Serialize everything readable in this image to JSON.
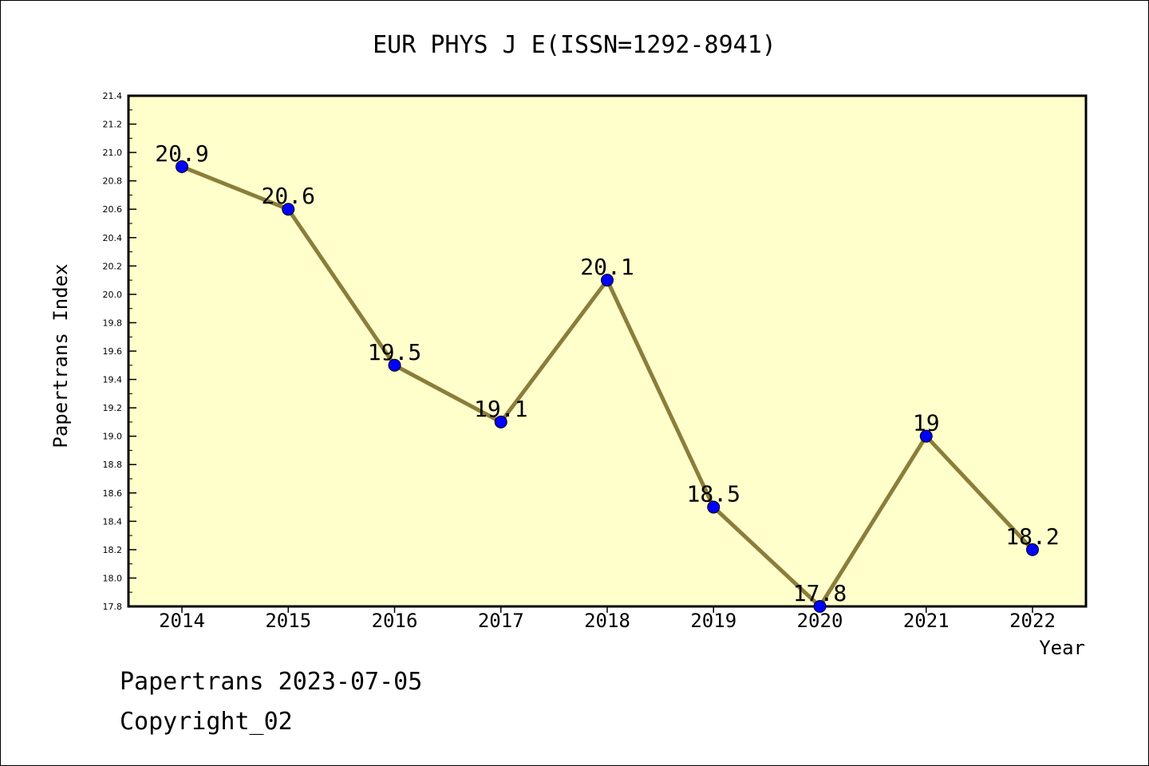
{
  "chart_data": {
    "type": "line",
    "title": "EUR PHYS J E(ISSN=1292-8941)",
    "xlabel": "Year",
    "ylabel": "Papertrans Index",
    "categories": [
      "2014",
      "2015",
      "2016",
      "2017",
      "2018",
      "2019",
      "2020",
      "2021",
      "2022"
    ],
    "series": [
      {
        "values": [
          20.9,
          20.6,
          19.5,
          19.1,
          20.1,
          18.5,
          17.8,
          19.0,
          18.2
        ],
        "labels": [
          "20.9",
          "20.6",
          "19.5",
          "19.1",
          "20.1",
          "18.5",
          "17.8",
          "19",
          "18.2"
        ]
      }
    ],
    "ylim": [
      17.8,
      21.4
    ],
    "yticks": [
      "17.8",
      "18.0",
      "18.2",
      "18.4",
      "18.6",
      "18.8",
      "19.0",
      "19.2",
      "19.4",
      "19.6",
      "19.8",
      "20.0",
      "20.2",
      "20.4",
      "20.6",
      "20.8",
      "21.0",
      "21.2",
      "21.4"
    ],
    "grid": false,
    "legend": "none",
    "colors": {
      "plot_background": "#ffffcc",
      "line": "#8b7d3a",
      "marker": "#0000ff"
    }
  },
  "footer": {
    "date_line": "Papertrans 2023-07-05",
    "copyright": "Copyright_02"
  }
}
